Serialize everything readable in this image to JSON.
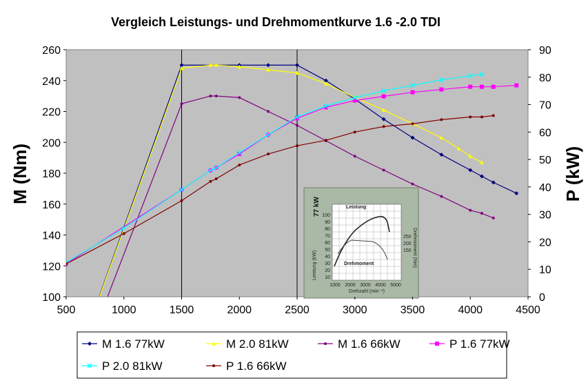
{
  "chart_data": {
    "type": "line",
    "title": "Vergleich Leistungs- und Drehmomentkurve 1.6 -2.0 TDI",
    "xlabel": "",
    "ylabel": "M (Nm)",
    "y2label": "P (kW)",
    "xlim": [
      500,
      4500
    ],
    "ylim": [
      100,
      260
    ],
    "y2lim": [
      0,
      90
    ],
    "x_ticks": [
      500,
      1000,
      1500,
      2000,
      2500,
      3000,
      3500,
      4000,
      4500
    ],
    "y_ticks": [
      100,
      120,
      140,
      160,
      180,
      200,
      220,
      240,
      260
    ],
    "y2_ticks": [
      0,
      10,
      20,
      30,
      40,
      50,
      60,
      70,
      80,
      90
    ],
    "grid": "vertical at 1500 and 2500",
    "plot_background": "#c0c0c0",
    "legend_position": "bottom",
    "series": [
      {
        "name": "M 1.6 77kW",
        "axis": "left",
        "color": "#000080",
        "marker": "diamond",
        "points": [
          [
            500,
            40
          ],
          [
            1500,
            250
          ],
          [
            2000,
            250
          ],
          [
            2250,
            250
          ],
          [
            2500,
            250
          ],
          [
            2750,
            240
          ],
          [
            3000,
            228
          ],
          [
            3250,
            215
          ],
          [
            3500,
            203
          ],
          [
            3750,
            192
          ],
          [
            4000,
            182
          ],
          [
            4100,
            178
          ],
          [
            4200,
            174
          ],
          [
            4400,
            167
          ]
        ]
      },
      {
        "name": "M 2.0 81kW",
        "axis": "left",
        "color": "#ffff00",
        "marker": "triangle",
        "points": [
          [
            500,
            40
          ],
          [
            1500,
            248
          ],
          [
            1750,
            250
          ],
          [
            1800,
            250
          ],
          [
            2000,
            249
          ],
          [
            2250,
            247
          ],
          [
            2500,
            245
          ],
          [
            2750,
            238
          ],
          [
            3000,
            229
          ],
          [
            3250,
            221
          ],
          [
            3500,
            212
          ],
          [
            3750,
            203
          ],
          [
            3900,
            196
          ],
          [
            4000,
            191
          ],
          [
            4100,
            187
          ]
        ]
      },
      {
        "name": "M 1.6 66kW",
        "axis": "left",
        "color": "#800080",
        "marker": "dot",
        "points": [
          [
            550,
            40
          ],
          [
            1500,
            225
          ],
          [
            1750,
            230
          ],
          [
            1800,
            230
          ],
          [
            2000,
            229
          ],
          [
            2250,
            220
          ],
          [
            2500,
            211
          ],
          [
            2750,
            201
          ],
          [
            3000,
            191
          ],
          [
            3250,
            182
          ],
          [
            3500,
            173
          ],
          [
            3750,
            165
          ],
          [
            4000,
            156
          ],
          [
            4100,
            154
          ],
          [
            4200,
            151
          ]
        ]
      },
      {
        "name": "P 1.6 77kW",
        "axis": "right",
        "color": "#ff00ff",
        "marker": "square",
        "points": [
          [
            500,
            12
          ],
          [
            1500,
            39
          ],
          [
            1750,
            46
          ],
          [
            1800,
            47
          ],
          [
            2000,
            52
          ],
          [
            2250,
            59
          ],
          [
            2500,
            65
          ],
          [
            2750,
            69
          ],
          [
            3000,
            71.5
          ],
          [
            3250,
            73
          ],
          [
            3500,
            74.5
          ],
          [
            3750,
            75.5
          ],
          [
            4000,
            76.5
          ],
          [
            4100,
            76.5
          ],
          [
            4200,
            76.5
          ],
          [
            4400,
            77
          ]
        ]
      },
      {
        "name": "P 2.0 81kW",
        "axis": "right",
        "color": "#00ffff",
        "marker": "x",
        "points": [
          [
            500,
            12.5
          ],
          [
            1000,
            25
          ],
          [
            1500,
            39
          ],
          [
            1750,
            46
          ],
          [
            1800,
            47
          ],
          [
            2000,
            52.5
          ],
          [
            2250,
            59
          ],
          [
            2500,
            65.5
          ],
          [
            2750,
            69.5
          ],
          [
            3000,
            72.5
          ],
          [
            3250,
            75
          ],
          [
            3500,
            77
          ],
          [
            3750,
            79
          ],
          [
            4000,
            80.5
          ],
          [
            4100,
            81
          ]
        ]
      },
      {
        "name": "P 1.6 66kW",
        "axis": "right",
        "color": "#800000",
        "marker": "dot",
        "points": [
          [
            500,
            12
          ],
          [
            1000,
            23
          ],
          [
            1500,
            35
          ],
          [
            1750,
            42
          ],
          [
            1800,
            43
          ],
          [
            2000,
            48
          ],
          [
            2250,
            52
          ],
          [
            2500,
            55
          ],
          [
            2750,
            57
          ],
          [
            3000,
            60
          ],
          [
            3250,
            62
          ],
          [
            3500,
            63
          ],
          [
            3750,
            64.5
          ],
          [
            4000,
            65.5
          ],
          [
            4100,
            65.5
          ],
          [
            4200,
            66
          ]
        ]
      }
    ],
    "inset": {
      "label_77kw": "77 kW",
      "leistung": "Leistung",
      "drehmoment": "Drehmoment",
      "ylabel_left": "Leistung (kW)",
      "ylabel_right": "Drehmoment (Nm)",
      "xlabel": "Drehzahl (min⁻¹)",
      "x_ticks": [
        "1000",
        "2000",
        "3000",
        "4000",
        "5000"
      ],
      "y_left_ticks": [
        "10",
        "20",
        "30",
        "40",
        "50",
        "60",
        "70",
        "80",
        "90",
        "100"
      ],
      "y_right_ticks": [
        "150",
        "200",
        "250"
      ]
    }
  }
}
